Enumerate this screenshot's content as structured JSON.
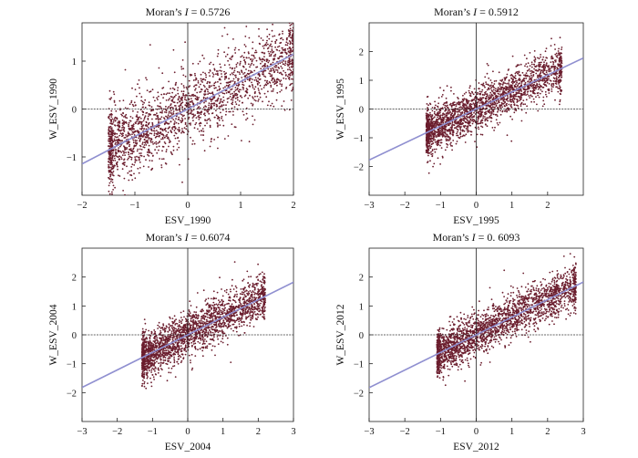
{
  "figure": {
    "point_color": "#6b1e2e",
    "line_color": "#8f8fd0"
  },
  "chart_data": [
    {
      "type": "scatter",
      "title_prefix": "Moran’s ",
      "title_stat": "I",
      "title_value": " = 0.5726",
      "xlabel": "ESV_1990",
      "ylabel": "W_ESV_1990",
      "xlim": [
        -2,
        2
      ],
      "ylim": [
        -1.8,
        1.8
      ],
      "xticks": [
        -2,
        -1,
        0,
        1,
        2
      ],
      "yticks": [
        -1,
        0,
        1
      ],
      "fit_line": {
        "slope": 0.5726,
        "intercept": 0.0
      },
      "x_range": [
        -1.5,
        2.0
      ],
      "y_noise": 0.38,
      "n_points": 2200,
      "seed": 11
    },
    {
      "type": "scatter",
      "title_prefix": "Moran’s ",
      "title_stat": "I",
      "title_value": " = 0.5912",
      "xlabel": "ESV_1995",
      "ylabel": "W_ESV_1995",
      "xlim": [
        -3,
        3
      ],
      "ylim": [
        -3,
        3
      ],
      "xticks": [
        -3,
        -2,
        -1,
        0,
        1,
        2
      ],
      "yticks": [
        -2,
        -1,
        0,
        1,
        2
      ],
      "fit_line": {
        "slope": 0.5912,
        "intercept": 0.0
      },
      "x_range": [
        -1.4,
        2.4
      ],
      "y_noise": 0.38,
      "n_points": 2400,
      "seed": 23
    },
    {
      "type": "scatter",
      "title_prefix": "Moran’s ",
      "title_stat": "I",
      "title_value": " = 0.6074",
      "xlabel": "ESV_2004",
      "ylabel": "W_ESV_2004",
      "xlim": [
        -3,
        3
      ],
      "ylim": [
        -3,
        3
      ],
      "xticks": [
        -3,
        -2,
        -1,
        0,
        1,
        2,
        3
      ],
      "yticks": [
        -2,
        -1,
        0,
        1,
        2
      ],
      "fit_line": {
        "slope": 0.6074,
        "intercept": 0.0
      },
      "x_range": [
        -1.3,
        2.2
      ],
      "y_noise": 0.37,
      "n_points": 2400,
      "seed": 37
    },
    {
      "type": "scatter",
      "title_prefix": "Moran’s ",
      "title_stat": "I",
      "title_value": " = 0. 6093",
      "xlabel": "ESV_2012",
      "ylabel": "W_ESV_2012",
      "xlim": [
        -3,
        3
      ],
      "ylim": [
        -3,
        3
      ],
      "xticks": [
        -3,
        -2,
        -1,
        0,
        1,
        2,
        3
      ],
      "yticks": [
        -2,
        -1,
        0,
        1,
        2
      ],
      "fit_line": {
        "slope": 0.6093,
        "intercept": 0.0
      },
      "x_range": [
        -1.1,
        2.8
      ],
      "y_noise": 0.37,
      "n_points": 2400,
      "seed": 53
    }
  ]
}
